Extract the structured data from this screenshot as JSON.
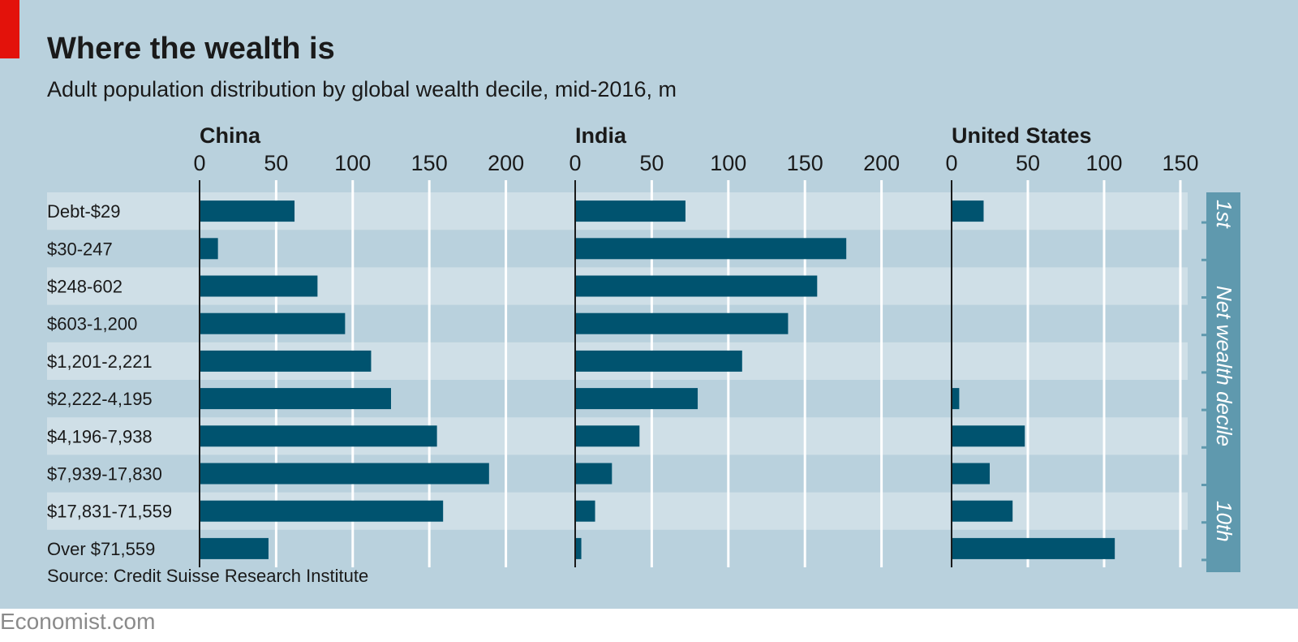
{
  "header": {
    "title": "Where the wealth is",
    "subtitle": "Adult population distribution by global wealth decile, mid-2016, m"
  },
  "source": "Source: Credit Suisse Research Institute",
  "footer": {
    "credit": "Economist.com"
  },
  "side_label": {
    "top": "1st",
    "middle": "Net wealth decile",
    "bottom": "10th"
  },
  "colors": {
    "background": "#b9d1dd",
    "band_light": "#cfdfe7",
    "bar": "#00536f",
    "gridline": "#ffffff",
    "axis": "#1a1a1a",
    "text": "#1a1a1a",
    "side_panel": "#5f99ae",
    "accent_red": "#e3120b"
  },
  "chart_data": [
    {
      "type": "bar",
      "orientation": "horizontal",
      "title": "China",
      "categories": [
        "Debt-$29",
        "$30-247",
        "$248-602",
        "$603-1,200",
        "$1,201-2,221",
        "$2,222-4,195",
        "$4,196-7,938",
        "$7,939-17,830",
        "$17,831-71,559",
        "Over $71,559"
      ],
      "values": [
        62,
        12,
        77,
        95,
        112,
        125,
        155,
        189,
        159,
        45
      ],
      "xlim": [
        0,
        200
      ],
      "ticks": [
        "0",
        "50",
        "100",
        "150",
        "200"
      ],
      "grid": true
    },
    {
      "type": "bar",
      "orientation": "horizontal",
      "title": "India",
      "categories": [
        "Debt-$29",
        "$30-247",
        "$248-602",
        "$603-1,200",
        "$1,201-2,221",
        "$2,222-4,195",
        "$4,196-7,938",
        "$7,939-17,830",
        "$17,831-71,559",
        "Over $71,559"
      ],
      "values": [
        72,
        177,
        158,
        139,
        109,
        80,
        42,
        24,
        13,
        4
      ],
      "xlim": [
        0,
        200
      ],
      "ticks": [
        "0",
        "50",
        "100",
        "150",
        "200"
      ],
      "grid": true
    },
    {
      "type": "bar",
      "orientation": "horizontal",
      "title": "United States",
      "categories": [
        "Debt-$29",
        "$30-247",
        "$248-602",
        "$603-1,200",
        "$1,201-2,221",
        "$2,222-4,195",
        "$4,196-7,938",
        "$7,939-17,830",
        "$17,831-71,559",
        "Over $71,559"
      ],
      "values": [
        21,
        0,
        0,
        0,
        0,
        5,
        48,
        25,
        40,
        107
      ],
      "xlim": [
        0,
        150
      ],
      "ticks": [
        "0",
        "50",
        "100",
        "150"
      ],
      "grid": true
    }
  ]
}
